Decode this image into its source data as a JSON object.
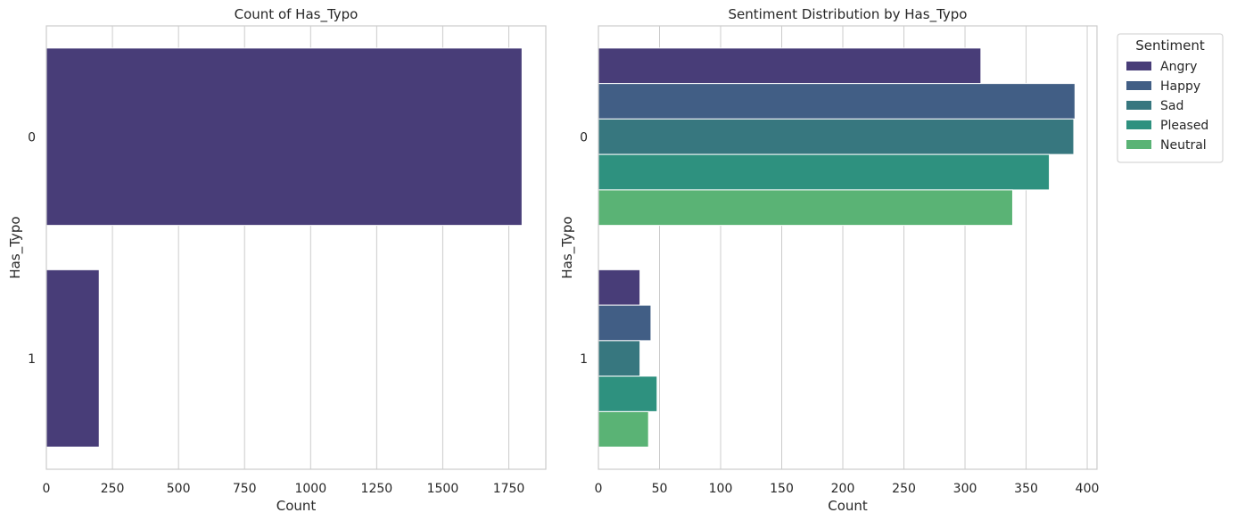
{
  "chart_data": [
    {
      "type": "bar",
      "orientation": "horizontal",
      "title": "Count of Has_Typo",
      "xlabel": "Count",
      "ylabel": "Has_Typo",
      "categories": [
        "0",
        "1"
      ],
      "values": [
        1800,
        200
      ],
      "xlim": [
        0,
        1890
      ],
      "xticks": [
        0,
        250,
        500,
        750,
        1000,
        1250,
        1500,
        1750
      ],
      "grid": "vertical",
      "color": "#483D78"
    },
    {
      "type": "bar",
      "orientation": "horizontal",
      "title": "Sentiment Distribution by Has_Typo",
      "xlabel": "Count",
      "ylabel": "Has_Typo",
      "categories": [
        "0",
        "1"
      ],
      "xlim": [
        0,
        408
      ],
      "xticks": [
        0,
        50,
        100,
        150,
        200,
        250,
        300,
        350,
        400
      ],
      "grid": "vertical",
      "legend": {
        "title": "Sentiment",
        "placement": "outside-top-right"
      },
      "series": [
        {
          "name": "Angry",
          "values": [
            313,
            34
          ],
          "color": "#483D78"
        },
        {
          "name": "Happy",
          "values": [
            390,
            43
          ],
          "color": "#415E85"
        },
        {
          "name": "Sad",
          "values": [
            389,
            34
          ],
          "color": "#37777F"
        },
        {
          "name": "Pleased",
          "values": [
            369,
            48
          ],
          "color": "#2E917F"
        },
        {
          "name": "Neutral",
          "values": [
            339,
            41
          ],
          "color": "#5AB375"
        }
      ]
    }
  ]
}
